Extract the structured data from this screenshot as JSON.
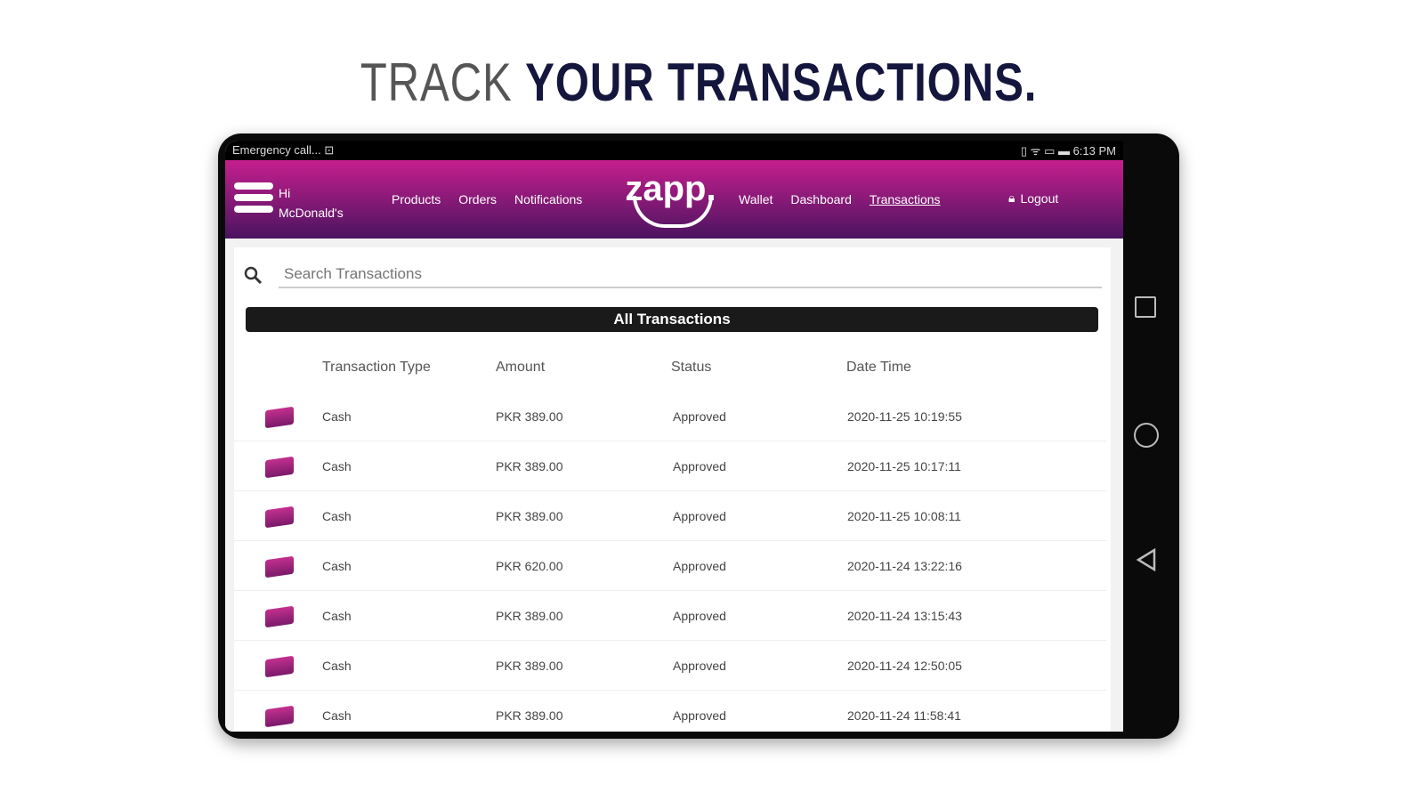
{
  "headline": {
    "thin": "TRACK ",
    "bold": "YOUR TRANSACTIONS."
  },
  "status_bar": {
    "left": "Emergency call... ⊡",
    "right": "▯ ᯤ ▭ ▬ 6:13 PM"
  },
  "header": {
    "greeting_line1": "Hi",
    "greeting_line2": "McDonald's",
    "nav_left": [
      "Products",
      "Orders",
      "Notifications"
    ],
    "logo": "zapp.",
    "nav_right": [
      "Wallet",
      "Dashboard",
      "Transactions"
    ],
    "active": "Transactions",
    "logout": "Logout"
  },
  "search": {
    "placeholder": "Search Transactions"
  },
  "all_transactions": "All Transactions",
  "columns": [
    "Transaction Type",
    "Amount",
    "Status",
    "Date Time"
  ],
  "rows": [
    {
      "type": "Cash",
      "amount": "PKR 389.00",
      "status": "Approved",
      "datetime": "2020-11-25 10:19:55"
    },
    {
      "type": "Cash",
      "amount": "PKR 389.00",
      "status": "Approved",
      "datetime": "2020-11-25 10:17:11"
    },
    {
      "type": "Cash",
      "amount": "PKR 389.00",
      "status": "Approved",
      "datetime": "2020-11-25 10:08:11"
    },
    {
      "type": "Cash",
      "amount": "PKR 620.00",
      "status": "Approved",
      "datetime": "2020-11-24 13:22:16"
    },
    {
      "type": "Cash",
      "amount": "PKR 389.00",
      "status": "Approved",
      "datetime": "2020-11-24 13:15:43"
    },
    {
      "type": "Cash",
      "amount": "PKR 389.00",
      "status": "Approved",
      "datetime": "2020-11-24 12:50:05"
    },
    {
      "type": "Cash",
      "amount": "PKR 389.00",
      "status": "Approved",
      "datetime": "2020-11-24 11:58:41"
    }
  ],
  "colors": {
    "brand_top": "#c61f8e",
    "brand_bottom": "#4a1460",
    "headline": "#14163d"
  }
}
